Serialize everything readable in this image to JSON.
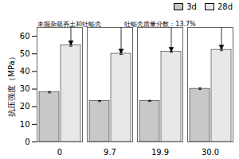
{
  "chart_data": {
    "type": "bar",
    "categories": [
      "0",
      "9.7",
      "19.9",
      "30.0"
    ],
    "series": [
      {
        "name": "3d",
        "color": "#c8c8c8",
        "values": [
          28.2,
          23.2,
          23.3,
          30.2
        ],
        "errors": [
          0.4,
          0.3,
          0.3,
          0.4
        ]
      },
      {
        "name": "28d",
        "color": "#e8e8e8",
        "values": [
          54.8,
          50.1,
          51.2,
          52.3
        ],
        "errors": [
          0.5,
          0.5,
          0.4,
          0.5
        ]
      }
    ],
    "ylabel": "抗压强度（MPa）",
    "ylim": [
      0,
      65
    ],
    "yticks": [
      0,
      10,
      20,
      30,
      40,
      50,
      60
    ],
    "legend": "upper right",
    "annotations": [
      {
        "text": "未掘杂疏夯土和牡蛎壳",
        "series": "28d",
        "categories": [
          "0"
        ]
      },
      {
        "text": "牡蛎壳质量分数：13.7%",
        "series": "28d",
        "categories": [
          "9.7",
          "19.9",
          "30.0"
        ]
      }
    ]
  }
}
